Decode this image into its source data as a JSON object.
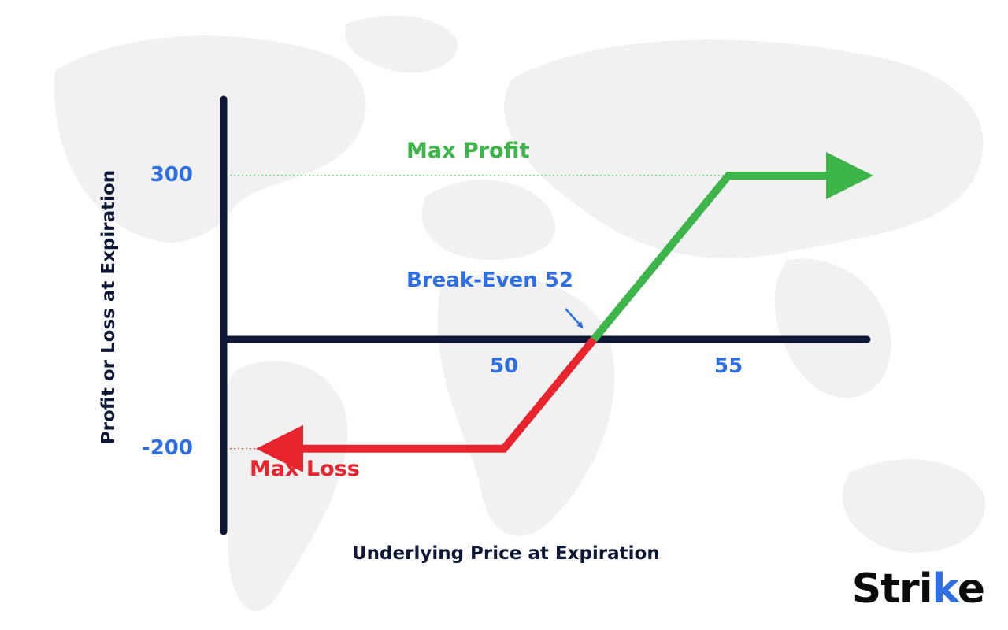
{
  "brand": {
    "name": "Strike",
    "accent_color": "#2f6fe3"
  },
  "chart_data": {
    "type": "line",
    "title": "",
    "xlabel": "Underlying Price at Expiration",
    "ylabel": "Profit or Loss at Expiration",
    "x_ticks": [
      50,
      55
    ],
    "y_ticks": [
      300,
      -200
    ],
    "xlim": [
      45,
      59
    ],
    "ylim": [
      -350,
      400
    ],
    "series": [
      {
        "segment": "loss",
        "color": "#e8242c",
        "points": [
          [
            45,
            -200
          ],
          [
            50,
            -200
          ],
          [
            52,
            0
          ]
        ]
      },
      {
        "segment": "profit",
        "color": "#3db54a",
        "points": [
          [
            52,
            0
          ],
          [
            55,
            300
          ],
          [
            57.7,
            300
          ]
        ]
      }
    ],
    "annotations": {
      "max_profit": {
        "label": "Max Profit",
        "value": 300,
        "color": "#3db54a"
      },
      "max_loss": {
        "label": "Max Loss",
        "value": -200,
        "color": "#e8242c"
      },
      "break_even": {
        "label": "Break-Even 52",
        "value": 52,
        "color": "#2f6fe3"
      }
    },
    "axis_color": "#0e1736",
    "grid": false,
    "legend": "none"
  }
}
